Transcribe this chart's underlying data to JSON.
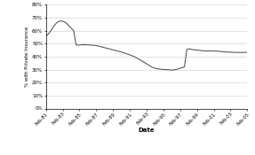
{
  "xlabel": "Date",
  "ylabel": "% with Private Insurance",
  "ylim": [
    0.0,
    0.8
  ],
  "yticks": [
    0.0,
    0.1,
    0.2,
    0.3,
    0.4,
    0.5,
    0.6,
    0.7,
    0.8
  ],
  "ytick_labels": [
    "0%",
    "10%",
    "20%",
    "30%",
    "40%",
    "50%",
    "60%",
    "70%",
    "80%"
  ],
  "xtick_labels": [
    "Feb-81",
    "Feb-83",
    "Feb-85",
    "Feb-87",
    "Feb-89",
    "Feb-91",
    "Feb-93",
    "Feb-95",
    "Feb-97",
    "Feb-99",
    "Feb-01",
    "Feb-03",
    "Feb-05"
  ],
  "line_color": "#444444",
  "background_color": "#ffffff",
  "grid_color": "#cccccc",
  "y_values": [
    0.555,
    0.575,
    0.6,
    0.63,
    0.655,
    0.67,
    0.675,
    0.67,
    0.66,
    0.64,
    0.62,
    0.6,
    0.49,
    0.488,
    0.49,
    0.492,
    0.49,
    0.49,
    0.488,
    0.487,
    0.485,
    0.48,
    0.475,
    0.47,
    0.465,
    0.46,
    0.455,
    0.45,
    0.445,
    0.44,
    0.435,
    0.428,
    0.422,
    0.415,
    0.408,
    0.4,
    0.39,
    0.38,
    0.368,
    0.356,
    0.344,
    0.332,
    0.32,
    0.312,
    0.308,
    0.304,
    0.302,
    0.3,
    0.3,
    0.298,
    0.296,
    0.298,
    0.302,
    0.308,
    0.315,
    0.32,
    0.455,
    0.46,
    0.455,
    0.452,
    0.45,
    0.448,
    0.446,
    0.444,
    0.443,
    0.443,
    0.443,
    0.442,
    0.442,
    0.44,
    0.438,
    0.436,
    0.435,
    0.434,
    0.433,
    0.432,
    0.432,
    0.432,
    0.432,
    0.432,
    0.432
  ]
}
